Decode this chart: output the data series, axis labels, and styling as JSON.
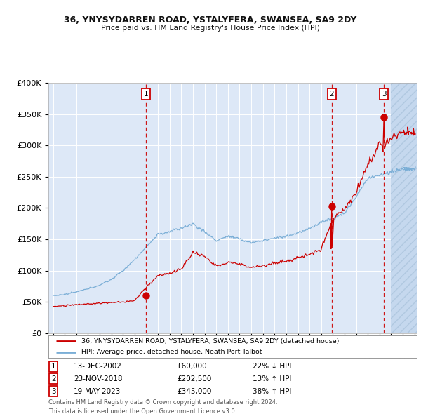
{
  "title1": "36, YNYSYDARREN ROAD, YSTALYFERA, SWANSEA, SA9 2DY",
  "title2": "Price paid vs. HM Land Registry's House Price Index (HPI)",
  "ylim": [
    0,
    400000
  ],
  "yticks": [
    0,
    50000,
    100000,
    150000,
    200000,
    250000,
    300000,
    350000,
    400000
  ],
  "ytick_labels": [
    "£0",
    "£50K",
    "£100K",
    "£150K",
    "£200K",
    "£250K",
    "£300K",
    "£350K",
    "£400K"
  ],
  "xlim_start": 1994.6,
  "xlim_end": 2026.2,
  "sale_dates": [
    2002.96,
    2018.9,
    2023.38
  ],
  "sale_prices": [
    60000,
    202500,
    345000
  ],
  "sale_labels": [
    "1",
    "2",
    "3"
  ],
  "sale_date_strs": [
    "13-DEC-2002",
    "23-NOV-2018",
    "19-MAY-2023"
  ],
  "sale_price_strs": [
    "£60,000",
    "£202,500",
    "£345,000"
  ],
  "sale_hpi_strs": [
    "22% ↓ HPI",
    "13% ↑ HPI",
    "38% ↑ HPI"
  ],
  "legend_line1": "36, YNYSYDARREN ROAD, YSTALYFERA, SWANSEA, SA9 2DY (detached house)",
  "legend_line2": "HPI: Average price, detached house, Neath Port Talbot",
  "footer1": "Contains HM Land Registry data © Crown copyright and database right 2024.",
  "footer2": "This data is licensed under the Open Government Licence v3.0.",
  "bg_color": "#dde8f7",
  "grid_color": "#ffffff",
  "red_line_color": "#cc0000",
  "blue_line_color": "#7aaed6",
  "hatch_start_year": 2024.0,
  "hatch_color": "#c5d8ee"
}
